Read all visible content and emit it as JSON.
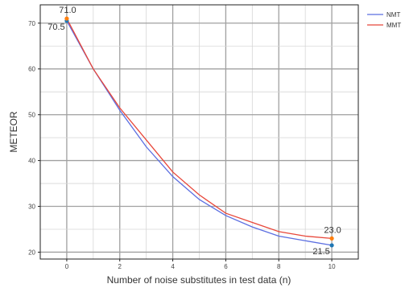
{
  "chart_data": {
    "type": "line",
    "xlabel": "Number of noise substitutes in test data (n)",
    "ylabel": "METEOR",
    "x": [
      0,
      1,
      2,
      3,
      4,
      5,
      6,
      7,
      8,
      9,
      10
    ],
    "xlim": [
      -1,
      11
    ],
    "ylim": [
      18.5,
      74
    ],
    "xticks": [
      0,
      2,
      4,
      6,
      8,
      10
    ],
    "yticks": [
      20,
      30,
      40,
      50,
      60,
      70
    ],
    "grid": true,
    "legend_position": "top-right",
    "series": [
      {
        "name": "NMT",
        "color": "#5b6ee1",
        "values": [
          70.5,
          60.0,
          51.0,
          43.0,
          36.5,
          31.5,
          28.0,
          25.5,
          23.5,
          22.5,
          21.5
        ],
        "labeled_points": [
          {
            "x": 0,
            "y": 70.5,
            "label": "70.5"
          },
          {
            "x": 10,
            "y": 21.5,
            "label": "21.5"
          }
        ]
      },
      {
        "name": "MMT",
        "color": "#e8473a",
        "values": [
          71.0,
          60.0,
          51.5,
          44.5,
          37.5,
          32.5,
          28.5,
          26.5,
          24.5,
          23.5,
          23.0
        ],
        "labeled_points": [
          {
            "x": 0,
            "y": 71.0,
            "label": "71.0"
          },
          {
            "x": 10,
            "y": 23.0,
            "label": "23.0"
          }
        ]
      }
    ],
    "marker_colors": {
      "NMT": "#1f77b4",
      "MMT": "#ff7f0e"
    }
  }
}
